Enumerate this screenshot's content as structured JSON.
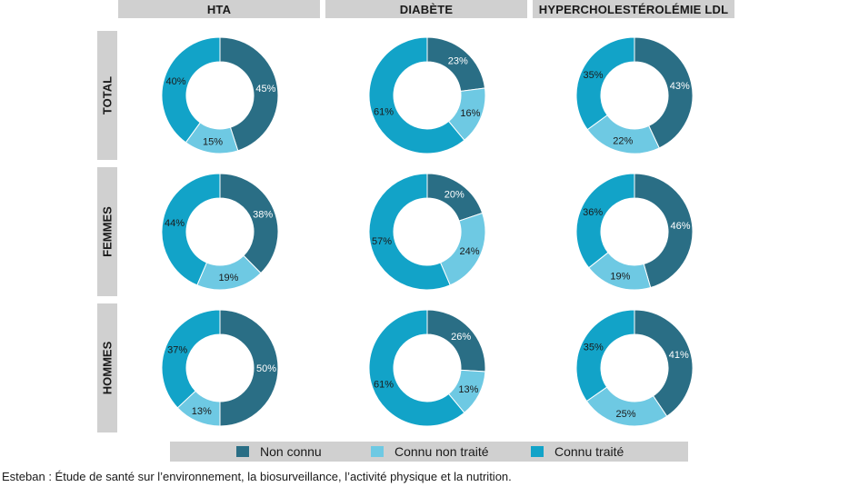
{
  "columns": [
    "HTA",
    "DIABÈTE",
    "HYPERCHOLESTÉROLÉMIE LDL"
  ],
  "rows": [
    "TOTAL",
    "FEMMES",
    "HOMMES"
  ],
  "colors": {
    "non_connu": "#2a6e85",
    "connu_non_traite": "#6ec9e3",
    "connu_traite": "#12a3c8",
    "header_bg": "#d0d0d0"
  },
  "legend": {
    "non_connu": "Non connu",
    "connu_non_traite": "Connu non traité",
    "connu_traite": "Connu traité"
  },
  "source": "Esteban : Étude de santé sur l’environnement, la biosurveillance, l’activité physique et la nutrition.",
  "chart_data": {
    "type": "pie",
    "variant": "donut",
    "series_order": [
      "Non connu",
      "Connu non traité",
      "Connu traité"
    ],
    "charts": [
      {
        "row": "TOTAL",
        "column": "HTA",
        "values": [
          45,
          15,
          40
        ],
        "labels": [
          "45%",
          "15%",
          "40%"
        ]
      },
      {
        "row": "TOTAL",
        "column": "DIABÈTE",
        "values": [
          23,
          16,
          61
        ],
        "labels": [
          "23%",
          "16%",
          "61%"
        ]
      },
      {
        "row": "TOTAL",
        "column": "HYPERCHOLESTÉROLÉMIE LDL",
        "values": [
          43,
          22,
          35
        ],
        "labels": [
          "43%",
          "22%",
          "35%"
        ]
      },
      {
        "row": "FEMMES",
        "column": "HTA",
        "values": [
          38,
          19,
          44
        ],
        "labels": [
          "38%",
          "19%",
          "44%"
        ]
      },
      {
        "row": "FEMMES",
        "column": "DIABÈTE",
        "values": [
          20,
          24,
          57
        ],
        "labels": [
          "20%",
          "24%",
          "57%"
        ]
      },
      {
        "row": "FEMMES",
        "column": "HYPERCHOLESTÉROLÉMIE LDL",
        "values": [
          46,
          19,
          36
        ],
        "labels": [
          "46%",
          "19%",
          "36%"
        ]
      },
      {
        "row": "HOMMES",
        "column": "HTA",
        "values": [
          50,
          13,
          37
        ],
        "labels": [
          "50%",
          "13%",
          "37%"
        ]
      },
      {
        "row": "HOMMES",
        "column": "DIABÈTE",
        "values": [
          26,
          13,
          61
        ],
        "labels": [
          "26%",
          "13%",
          "61%"
        ]
      },
      {
        "row": "HOMMES",
        "column": "HYPERCHOLESTÉROLÉMIE LDL",
        "values": [
          41,
          25,
          35
        ],
        "labels": [
          "41%",
          "25%",
          "35%"
        ]
      }
    ]
  }
}
